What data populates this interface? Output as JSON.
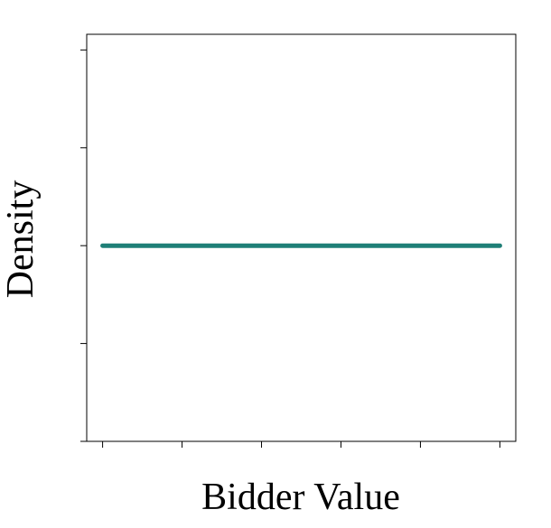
{
  "chart_data": {
    "type": "line",
    "title": "",
    "xlabel": "Bidder Value",
    "ylabel": "Density",
    "x": [
      0,
      1
    ],
    "series": [
      {
        "values": [
          1,
          1
        ]
      }
    ],
    "xlim": [
      -0.04,
      1.04
    ],
    "ylim": [
      0,
      2.08
    ],
    "x_ticks": [
      0,
      0.2,
      0.4,
      0.6,
      0.8,
      1.0
    ],
    "y_ticks": [
      0,
      0.5,
      1.0,
      1.5,
      2.0
    ],
    "tick_labels_shown": false,
    "grid": false,
    "legend": "none",
    "line_color": "#1f7f77",
    "axis_color": "#000000",
    "background": "#ffffff"
  }
}
